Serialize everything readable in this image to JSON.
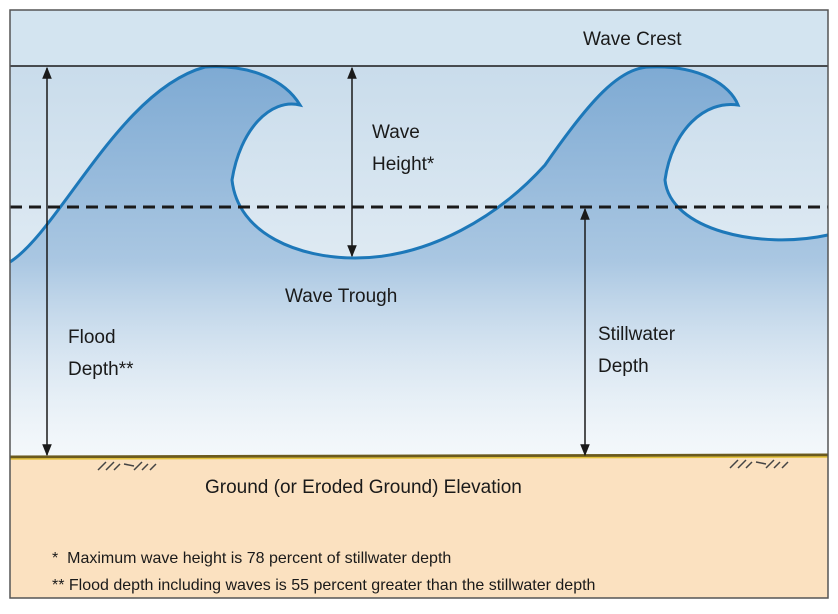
{
  "labels": {
    "wave_crest": "Wave Crest",
    "wave_height": [
      "Wave",
      "Height*"
    ],
    "wave_trough": "Wave Trough",
    "flood_depth": [
      "Flood",
      "Depth**"
    ],
    "stillwater_depth": [
      "Stillwater",
      "Depth"
    ],
    "ground": "Ground (or Eroded Ground) Elevation"
  },
  "footnotes": [
    "*  Maximum wave height is 78 percent of stillwater depth",
    "** Flood depth including waves is 55 percent greater than the stillwater depth"
  ]
}
